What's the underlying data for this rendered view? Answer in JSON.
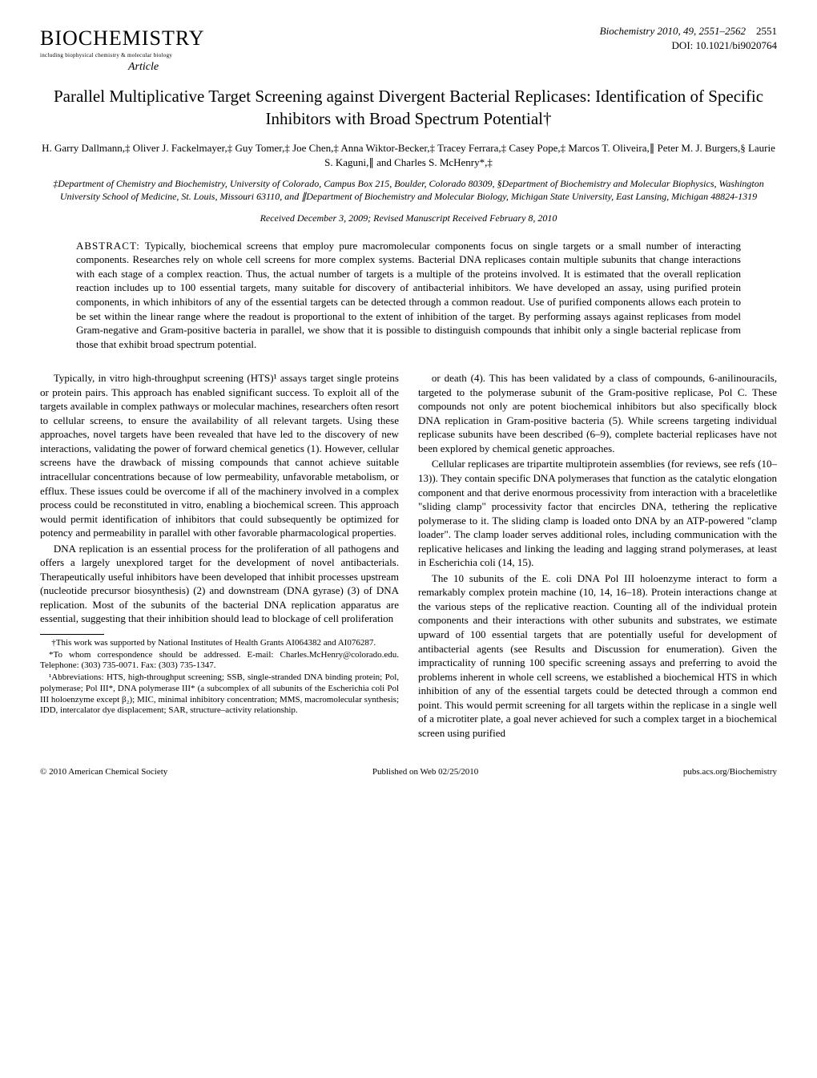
{
  "header": {
    "journal_name": "BIOCHEMISTRY",
    "journal_subtitle": "including biophysical chemistry & molecular biology",
    "article_label": "Article",
    "citation": "Biochemistry 2010, 49, 2551–2562",
    "page_number": "2551",
    "doi": "DOI: 10.1021/bi9020764"
  },
  "title": "Parallel Multiplicative Target Screening against Divergent Bacterial Replicases: Identification of Specific Inhibitors with Broad Spectrum Potential†",
  "authors": "H. Garry Dallmann,‡ Oliver J. Fackelmayer,‡ Guy Tomer,‡ Joe Chen,‡ Anna Wiktor-Becker,‡ Tracey Ferrara,‡ Casey Pope,‡ Marcos T. Oliveira,∥ Peter M. J. Burgers,§ Laurie S. Kaguni,∥ and Charles S. McHenry*,‡",
  "affiliations": "‡Department of Chemistry and Biochemistry, University of Colorado, Campus Box 215, Boulder, Colorado 80309, §Department of Biochemistry and Molecular Biophysics, Washington University School of Medicine, St. Louis, Missouri 63110, and ∥Department of Biochemistry and Molecular Biology, Michigan State University, East Lansing, Michigan 48824-1319",
  "dates": "Received December 3, 2009; Revised Manuscript Received February 8, 2010",
  "abstract_label": "ABSTRACT:",
  "abstract": "Typically, biochemical screens that employ pure macromolecular components focus on single targets or a small number of interacting components. Researches rely on whole cell screens for more complex systems. Bacterial DNA replicases contain multiple subunits that change interactions with each stage of a complex reaction. Thus, the actual number of targets is a multiple of the proteins involved. It is estimated that the overall replication reaction includes up to 100 essential targets, many suitable for discovery of antibacterial inhibitors. We have developed an assay, using purified protein components, in which inhibitors of any of the essential targets can be detected through a common readout. Use of purified components allows each protein to be set within the linear range where the readout is proportional to the extent of inhibition of the target. By performing assays against replicases from model Gram-negative and Gram-positive bacteria in parallel, we show that it is possible to distinguish compounds that inhibit only a single bacterial replicase from those that exhibit broad spectrum potential.",
  "body": {
    "left_p1": "Typically, in vitro high-throughput screening (HTS)¹ assays target single proteins or protein pairs. This approach has enabled significant success. To exploit all of the targets available in complex pathways or molecular machines, researchers often resort to cellular screens, to ensure the availability of all relevant targets. Using these approaches, novel targets have been revealed that have led to the discovery of new interactions, validating the power of forward chemical genetics (1). However, cellular screens have the drawback of missing compounds that cannot achieve suitable intracellular concentrations because of low permeability, unfavorable metabolism, or efflux. These issues could be overcome if all of the machinery involved in a complex process could be reconstituted in vitro, enabling a biochemical screen. This approach would permit identification of inhibitors that could subsequently be optimized for potency and permeability in parallel with other favorable pharmacological properties.",
    "left_p2": "DNA replication is an essential process for the proliferation of all pathogens and offers a largely unexplored target for the development of novel antibacterials. Therapeutically useful inhibitors have been developed that inhibit processes upstream (nucleotide precursor biosynthesis) (2) and downstream (DNA gyrase) (3) of DNA replication. Most of the subunits of the bacterial DNA replication apparatus are essential, suggesting that their inhibition should lead to blockage of cell proliferation",
    "right_p1": "or death (4). This has been validated by a class of compounds, 6-anilinouracils, targeted to the polymerase subunit of the Gram-positive replicase, Pol C. These compounds not only are potent biochemical inhibitors but also specifically block DNA replication in Gram-positive bacteria (5). While screens targeting individual replicase subunits have been described (6–9), complete bacterial replicases have not been explored by chemical genetic approaches.",
    "right_p2": "Cellular replicases are tripartite multiprotein assemblies (for reviews, see refs (10–13)). They contain specific DNA polymerases that function as the catalytic elongation component and that derive enormous processivity from interaction with a braceletlike \"sliding clamp\" processivity factor that encircles DNA, tethering the replicative polymerase to it. The sliding clamp is loaded onto DNA by an ATP-powered \"clamp loader\". The clamp loader serves additional roles, including communication with the replicative helicases and linking the leading and lagging strand polymerases, at least in Escherichia coli (14, 15).",
    "right_p3": "The 10 subunits of the E. coli DNA Pol III holoenzyme interact to form a remarkably complex protein machine (10, 14, 16–18). Protein interactions change at the various steps of the replicative reaction. Counting all of the individual protein components and their interactions with other subunits and substrates, we estimate upward of 100 essential targets that are potentially useful for development of antibacterial agents (see Results and Discussion for enumeration). Given the impracticality of running 100 specific screening assays and preferring to avoid the problems inherent in whole cell screens, we established a biochemical HTS in which inhibition of any of the essential targets could be detected through a common end point. This would permit screening for all targets within the replicase in a single well of a microtiter plate, a goal never achieved for such a complex target in a biochemical screen using purified"
  },
  "footnotes": {
    "fn1": "†This work was supported by National Institutes of Health Grants AI064382 and AI076287.",
    "fn2": "*To whom correspondence should be addressed. E-mail: Charles.McHenry@colorado.edu. Telephone: (303) 735-0071. Fax: (303) 735-1347.",
    "fn3": "¹Abbreviations: HTS, high-throughput screening; SSB, single-stranded DNA binding protein; Pol, polymerase; Pol III*, DNA polymerase III* (a subcomplex of all subunits of the Escherichia coli Pol III holoenzyme except β₂); MIC, minimal inhibitory concentration; MMS, macromolecular synthesis; IDD, intercalator dye displacement; SAR, structure–activity relationship."
  },
  "footer": {
    "copyright": "© 2010 American Chemical Society",
    "pubdate": "Published on Web 02/25/2010",
    "url": "pubs.acs.org/Biochemistry"
  },
  "colors": {
    "text": "#000000",
    "background": "#ffffff"
  },
  "typography": {
    "title_fontsize": 21,
    "body_fontsize": 13,
    "footnote_fontsize": 11,
    "footer_fontsize": 11
  }
}
